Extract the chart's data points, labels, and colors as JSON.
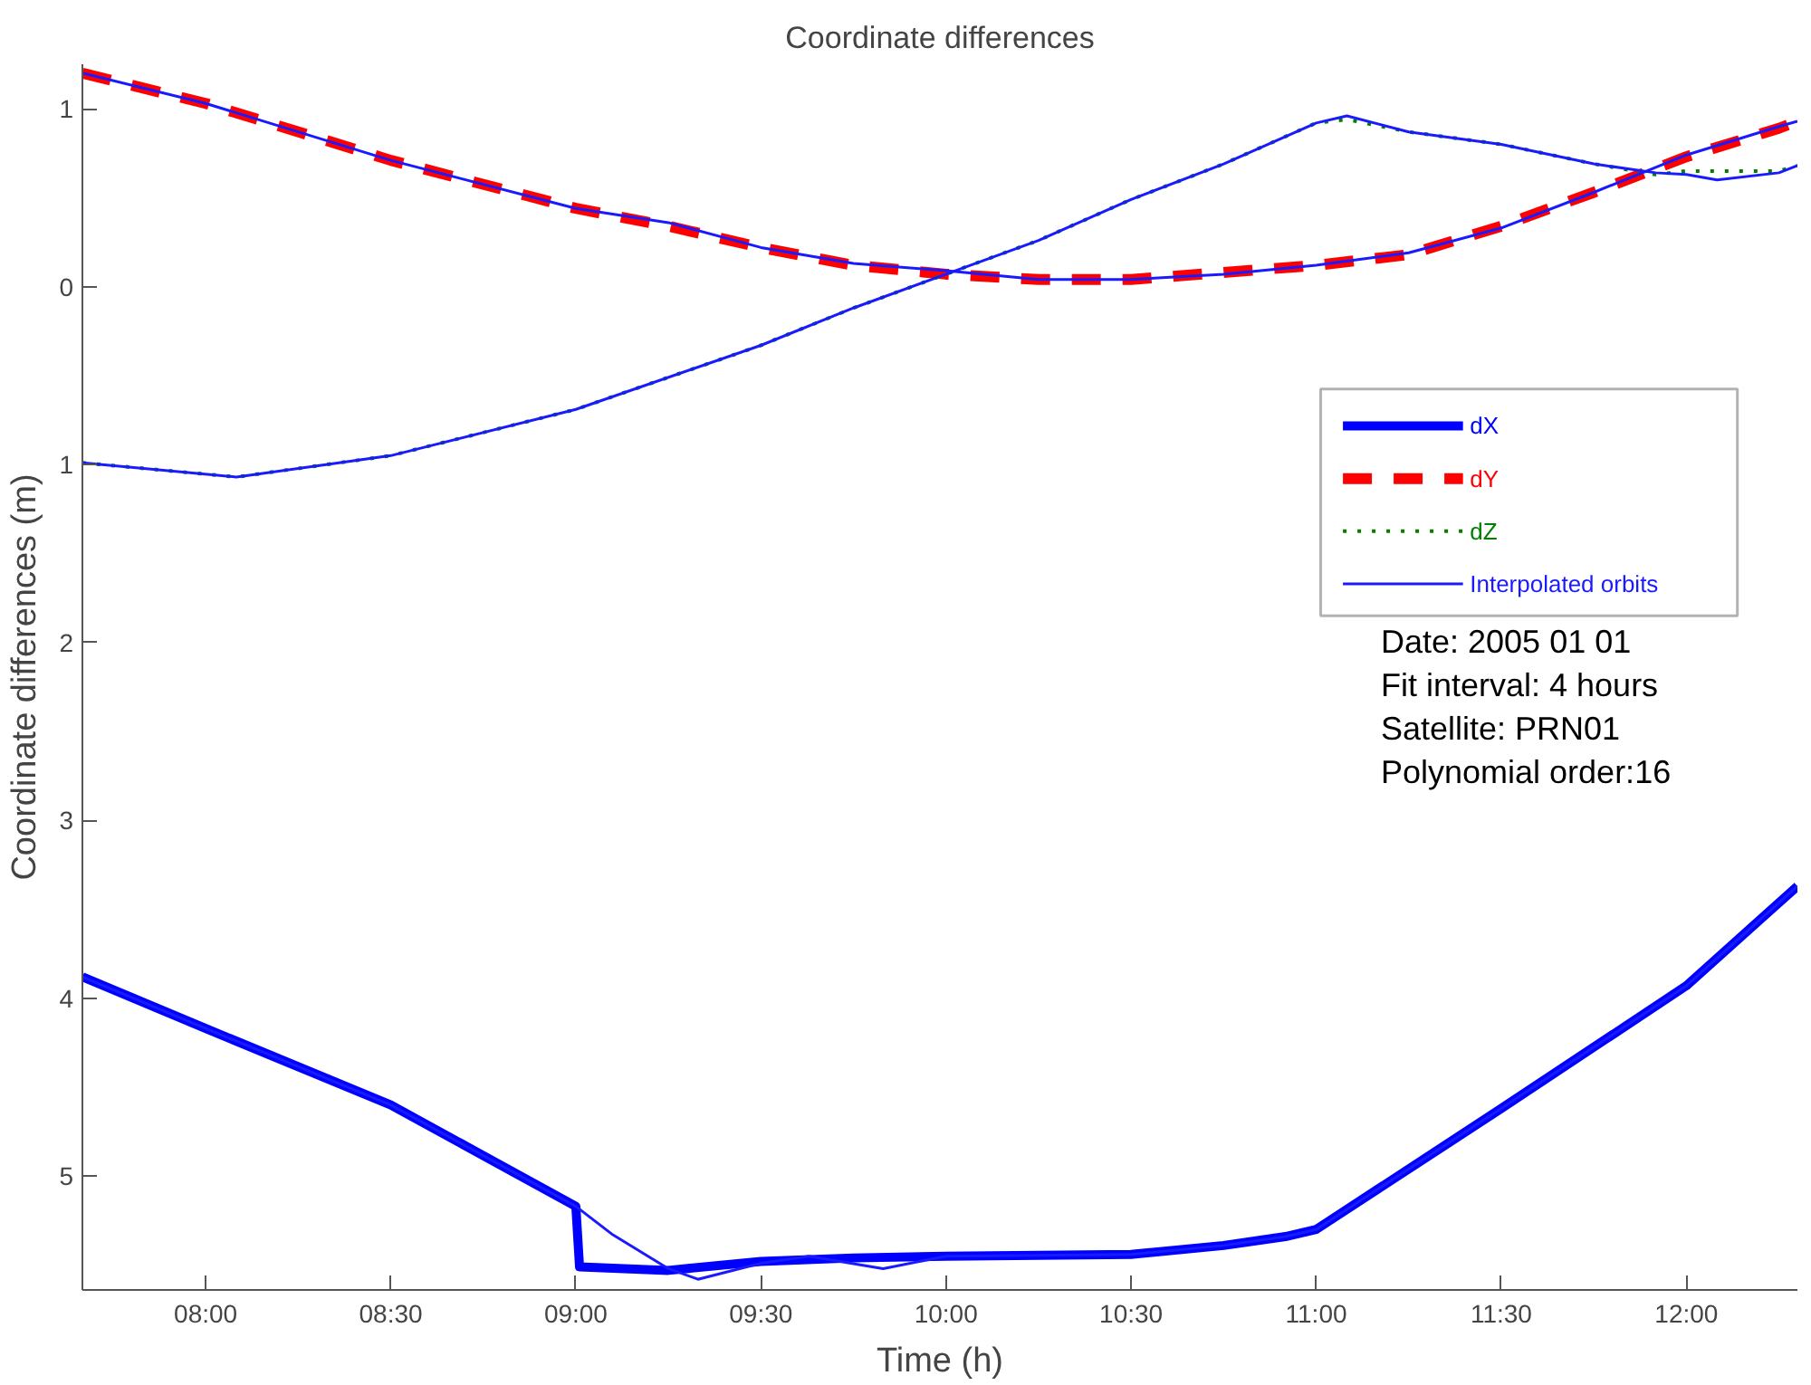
{
  "chart_data": {
    "type": "line",
    "title": "Coordinate differences",
    "xlabel": "Time (h)",
    "ylabel": "Coordinate differences (m)",
    "xlim": [
      7.667,
      12.3
    ],
    "ylim": [
      -5.64,
      1.25
    ],
    "xticks": [
      {
        "value": 8,
        "label": "08:00"
      },
      {
        "value": 8.5,
        "label": "08:30"
      },
      {
        "value": 9,
        "label": "09:00"
      },
      {
        "value": 9.5,
        "label": "09:30"
      },
      {
        "value": 10,
        "label": "10:00"
      },
      {
        "value": 10.5,
        "label": "10:30"
      },
      {
        "value": 11,
        "label": "11:00"
      },
      {
        "value": 11.5,
        "label": "11:30"
      },
      {
        "value": 12,
        "label": "12:00"
      }
    ],
    "yticks": [
      1,
      0,
      {
        "value": -1,
        "label": "1"
      },
      {
        "value": -2,
        "label": "2"
      },
      {
        "value": -3,
        "label": "3"
      },
      {
        "value": -4,
        "label": "4"
      },
      {
        "value": -5,
        "label": "5"
      }
    ],
    "grid": false,
    "legend": "right",
    "marker": "none",
    "annotations": [
      "Date: 2005  01  01",
      "Fit interval: 4 hours",
      "Satellite: PRN01",
      "Polynomial order:16"
    ],
    "series": [
      {
        "name": "dX",
        "color": "#0000ff",
        "line_style": "solid",
        "x": [
          7.667,
          8.0,
          8.5,
          9.0,
          9.01,
          9.25,
          9.5,
          9.75,
          10.0,
          10.5,
          10.75,
          10.917,
          11.0,
          11.5,
          12.0,
          12.3
        ],
        "values": [
          -3.88,
          -4.17,
          -4.6,
          -5.17,
          -5.51,
          -5.53,
          -5.48,
          -5.46,
          -5.45,
          -5.44,
          -5.39,
          -5.34,
          -5.3,
          -4.62,
          -3.93,
          -3.37
        ]
      },
      {
        "name": "dY",
        "color": "#ff0000",
        "line_style": "dashed",
        "x": [
          7.667,
          8.0,
          8.5,
          9.0,
          9.25,
          9.5,
          9.75,
          10.0,
          10.25,
          10.5,
          10.75,
          11.0,
          11.25,
          11.5,
          11.75,
          12.0,
          12.25,
          12.3
        ],
        "values": [
          1.2,
          1.03,
          0.71,
          0.44,
          0.34,
          0.22,
          0.12,
          0.07,
          0.04,
          0.04,
          0.08,
          0.12,
          0.18,
          0.34,
          0.53,
          0.73,
          0.89,
          0.93
        ]
      },
      {
        "name": "dZ",
        "color": "#008000",
        "line_style": "dotted",
        "x": [
          7.667,
          8.083,
          8.5,
          9.0,
          9.5,
          9.75,
          10.0,
          10.25,
          10.5,
          10.75,
          11.0,
          11.083,
          11.25,
          11.5,
          11.75,
          11.917,
          12.0,
          12.083,
          12.25,
          12.3
        ],
        "values": [
          -0.99,
          -1.07,
          -0.95,
          -0.69,
          -0.33,
          -0.12,
          0.07,
          0.26,
          0.49,
          0.69,
          0.92,
          0.94,
          0.87,
          0.8,
          0.69,
          0.63,
          0.65,
          0.65,
          0.65,
          0.68
        ]
      },
      {
        "name": "Interpolated orbits",
        "color": "#1a1aff",
        "line_style": "solid",
        "x": [
          7.667,
          8.0,
          8.5,
          9.0,
          9.1,
          9.25,
          9.33,
          9.5,
          9.63,
          9.83,
          10.0,
          10.5,
          10.75,
          10.917,
          11.0,
          11.5,
          12.0,
          12.3
        ],
        "values": [
          -3.88,
          -4.17,
          -4.6,
          -5.17,
          -5.33,
          -5.52,
          -5.58,
          -5.49,
          -5.45,
          -5.52,
          -5.45,
          -5.44,
          -5.39,
          -5.34,
          -5.3,
          -4.62,
          -3.93,
          -3.37
        ]
      },
      {
        "color": "#1a1aff",
        "line_style": "solid",
        "x": [
          7.667,
          8.0,
          8.5,
          9.0,
          9.25,
          9.5,
          9.75,
          10.0,
          10.25,
          10.5,
          10.75,
          11.0,
          11.25,
          11.5,
          11.75,
          12.0,
          12.25,
          12.3
        ],
        "values": [
          1.2,
          1.03,
          0.71,
          0.44,
          0.36,
          0.22,
          0.13,
          0.09,
          0.04,
          0.04,
          0.07,
          0.12,
          0.19,
          0.33,
          0.53,
          0.74,
          0.9,
          0.93
        ]
      },
      {
        "color": "#1a1aff",
        "line_style": "solid",
        "x": [
          7.667,
          8.083,
          8.5,
          9.0,
          9.5,
          9.75,
          10.0,
          10.25,
          10.5,
          10.75,
          11.0,
          11.083,
          11.25,
          11.5,
          11.75,
          11.917,
          12.0,
          12.083,
          12.25,
          12.3
        ],
        "values": [
          -0.99,
          -1.07,
          -0.95,
          -0.69,
          -0.33,
          -0.12,
          0.07,
          0.26,
          0.49,
          0.69,
          0.92,
          0.96,
          0.87,
          0.8,
          0.69,
          0.64,
          0.63,
          0.6,
          0.64,
          0.68
        ]
      }
    ]
  }
}
